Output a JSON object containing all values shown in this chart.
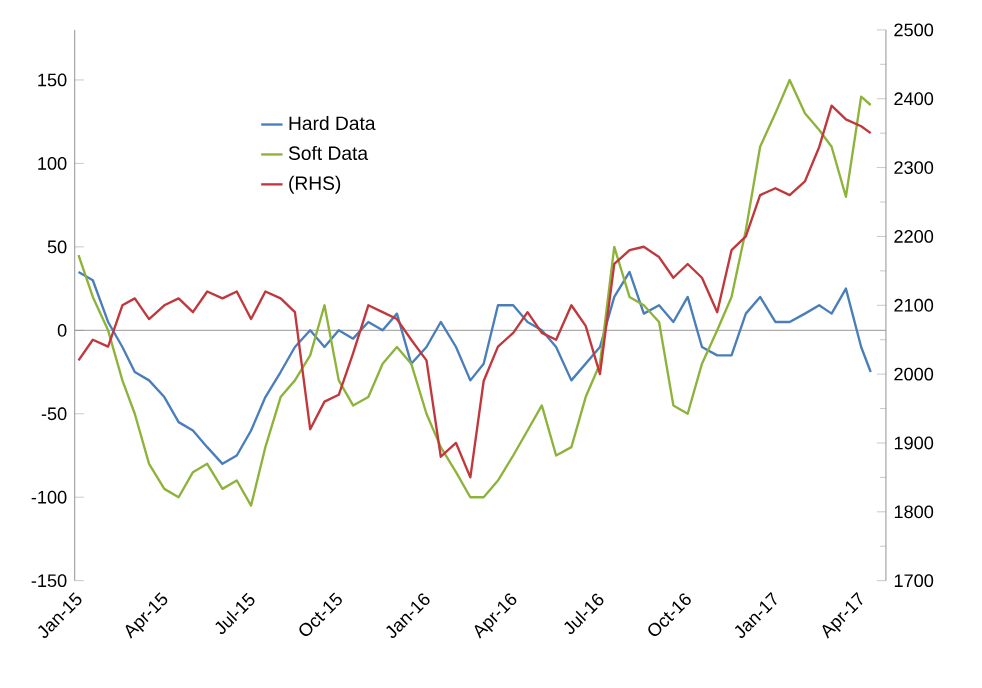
{
  "chart_data": {
    "type": "line",
    "x": [
      "2015-01-05",
      "2015-01-20",
      "2015-02-05",
      "2015-02-20",
      "2015-03-05",
      "2015-03-20",
      "2015-04-05",
      "2015-04-20",
      "2015-05-05",
      "2015-05-20",
      "2015-06-05",
      "2015-06-20",
      "2015-07-05",
      "2015-07-20",
      "2015-08-05",
      "2015-08-20",
      "2015-09-05",
      "2015-09-20",
      "2015-10-05",
      "2015-10-20",
      "2015-11-05",
      "2015-11-20",
      "2015-12-05",
      "2015-12-20",
      "2016-01-05",
      "2016-01-20",
      "2016-02-05",
      "2016-02-20",
      "2016-03-05",
      "2016-03-20",
      "2016-04-05",
      "2016-04-20",
      "2016-05-05",
      "2016-05-20",
      "2016-06-05",
      "2016-06-20",
      "2016-07-05",
      "2016-07-20",
      "2016-08-05",
      "2016-08-20",
      "2016-09-05",
      "2016-09-20",
      "2016-10-05",
      "2016-10-20",
      "2016-11-05",
      "2016-11-20",
      "2016-12-05",
      "2016-12-20",
      "2017-01-05",
      "2017-01-20",
      "2017-02-05",
      "2017-02-20",
      "2017-03-05",
      "2017-03-20",
      "2017-04-05",
      "2017-04-15"
    ],
    "series": [
      {
        "name": "Hard Data",
        "color": "#4a7ebb",
        "values": [
          35,
          30,
          5,
          -10,
          -25,
          -30,
          -40,
          -55,
          -60,
          -70,
          -80,
          -75,
          -60,
          -40,
          -25,
          -10,
          0,
          -10,
          0,
          -5,
          5,
          0,
          10,
          -20,
          -10,
          5,
          -10,
          -30,
          -20,
          15,
          15,
          5,
          0,
          -10,
          -30,
          -20,
          -10,
          20,
          35,
          10,
          15,
          5,
          20,
          -10,
          -15,
          -15,
          10,
          20,
          5,
          5,
          10,
          15,
          10,
          25,
          -10,
          -25
        ]
      },
      {
        "name": "Soft Data",
        "color": "#8db33a",
        "values": [
          45,
          20,
          0,
          -30,
          -50,
          -80,
          -95,
          -100,
          -85,
          -80,
          -95,
          -90,
          -105,
          -70,
          -40,
          -30,
          -15,
          15,
          -30,
          -45,
          -40,
          -20,
          -10,
          -20,
          -50,
          -70,
          -85,
          -100,
          -100,
          -90,
          -75,
          -60,
          -45,
          -75,
          -70,
          -40,
          -20,
          50,
          20,
          15,
          5,
          -45,
          -50,
          -20,
          0,
          20,
          60,
          110,
          130,
          150,
          130,
          120,
          110,
          80,
          140,
          135
        ]
      },
      {
        "name": "(RHS)",
        "color": "#c0373c",
        "axis": "y2",
        "values": [
          2020,
          2050,
          2040,
          2100,
          2110,
          2080,
          2100,
          2110,
          2090,
          2120,
          2110,
          2120,
          2080,
          2120,
          2110,
          2090,
          1920,
          1960,
          1970,
          2030,
          2100,
          2090,
          2080,
          2050,
          2020,
          1880,
          1900,
          1850,
          1990,
          2040,
          2060,
          2090,
          2060,
          2050,
          2100,
          2070,
          2000,
          2160,
          2180,
          2185,
          2170,
          2140,
          2160,
          2140,
          2090,
          2180,
          2200,
          2260,
          2270,
          2260,
          2280,
          2330,
          2390,
          2370,
          2360,
          2350
        ]
      }
    ],
    "xlim": [
      "2015-01-01",
      "2017-05-01"
    ],
    "xticks": [
      {
        "value": "2015-01-01",
        "label": "Jan-15"
      },
      {
        "value": "2015-04-01",
        "label": "Apr-15"
      },
      {
        "value": "2015-07-01",
        "label": "Jul-15"
      },
      {
        "value": "2015-10-01",
        "label": "Oct-15"
      },
      {
        "value": "2016-01-01",
        "label": "Jan-16"
      },
      {
        "value": "2016-04-01",
        "label": "Apr-16"
      },
      {
        "value": "2016-07-01",
        "label": "Jul-16"
      },
      {
        "value": "2016-10-01",
        "label": "Oct-16"
      },
      {
        "value": "2017-01-01",
        "label": "Jan-17"
      },
      {
        "value": "2017-04-01",
        "label": "Apr-17"
      }
    ],
    "ylim": [
      -150,
      180
    ],
    "yticks": [
      -150,
      -100,
      -50,
      0,
      50,
      100,
      150
    ],
    "y2lim": [
      1700,
      2500
    ],
    "y2ticks": [
      1700,
      1800,
      1900,
      2000,
      2100,
      2200,
      2300,
      2400,
      2500
    ],
    "ref_lines": [
      {
        "axis": "y",
        "value": 0,
        "color": "#888888"
      }
    ],
    "grid": false,
    "legend": "top left",
    "marker": "none",
    "line_style": "solid"
  }
}
